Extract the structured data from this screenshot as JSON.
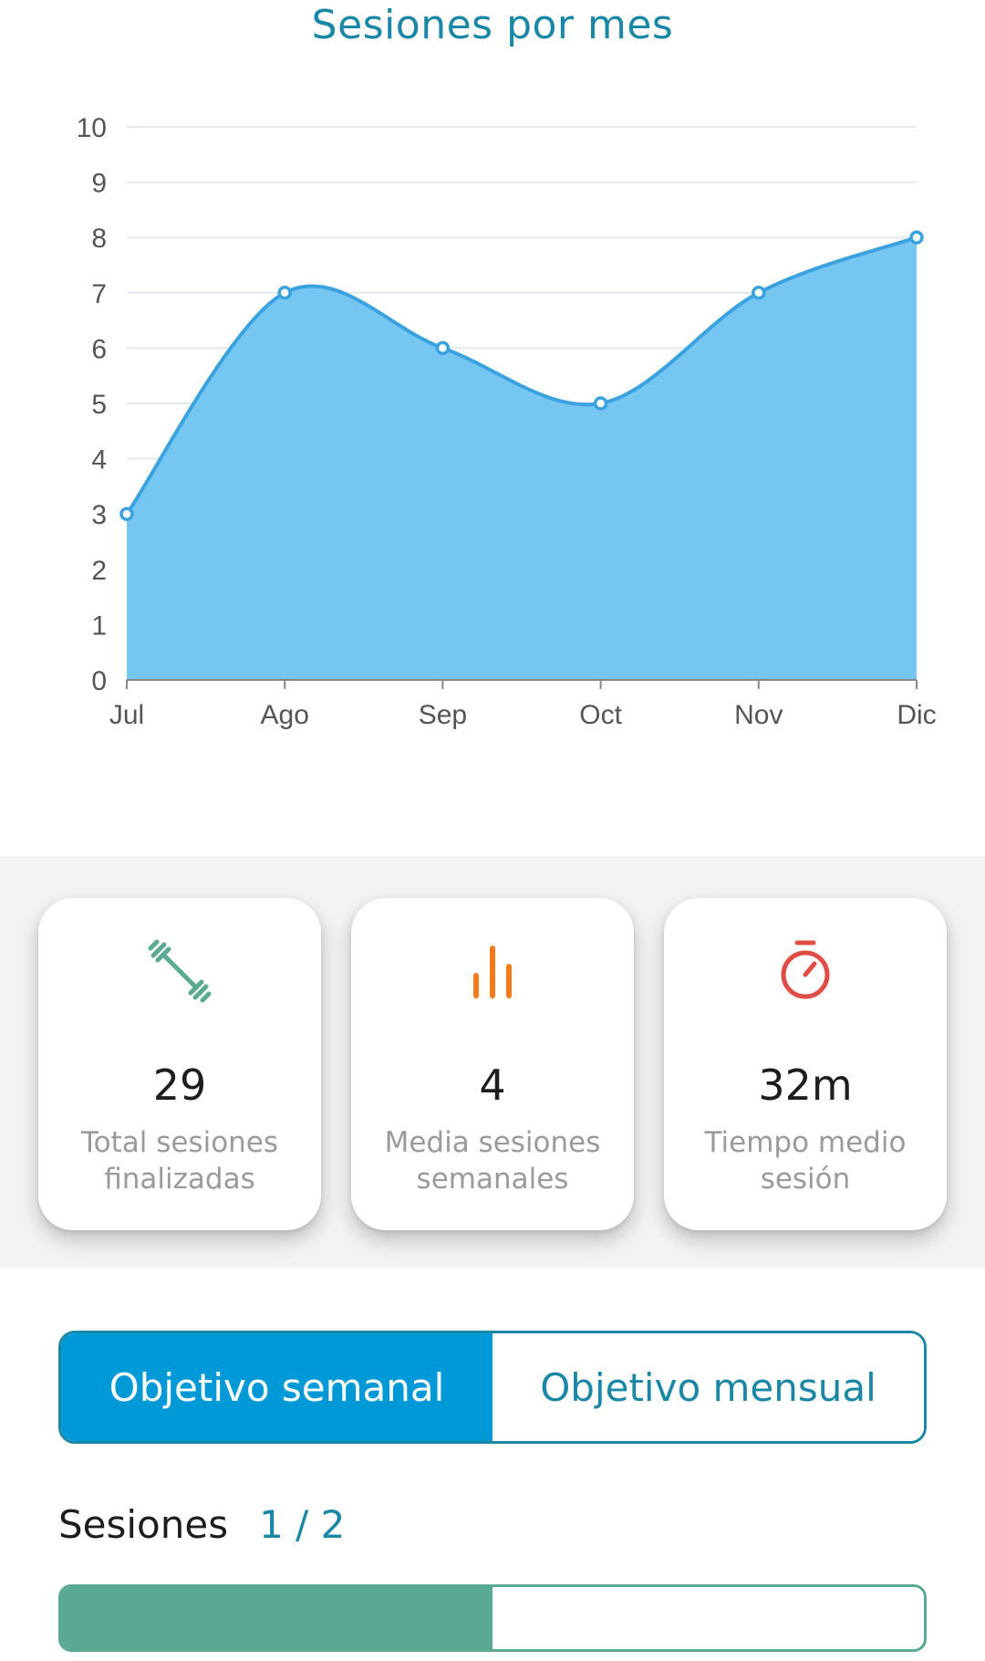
{
  "chart_data": {
    "type": "area",
    "title": "Sesiones por mes",
    "categories": [
      "Jul",
      "Ago",
      "Sep",
      "Oct",
      "Nov",
      "Dic"
    ],
    "values": [
      3,
      7,
      6,
      5,
      7,
      8
    ],
    "ylim": [
      0,
      10
    ],
    "yticks": [
      "0",
      "1",
      "2",
      "3",
      "4",
      "5",
      "6",
      "7",
      "8",
      "9",
      "10"
    ],
    "grid": true,
    "colors": {
      "fill": "#76c6f2",
      "line": "#3ba2e0",
      "grid": "#e1e8ef",
      "axis": "#888888"
    }
  },
  "stats": [
    {
      "icon": "dumbbell-icon",
      "value": "29",
      "label_line1": "Total sesiones",
      "label_line2": "finalizadas",
      "color": "#5aa993"
    },
    {
      "icon": "bar-chart-icon",
      "value": "4",
      "label_line1": "Media sesiones",
      "label_line2": "semanales",
      "color": "#f07c1e"
    },
    {
      "icon": "stopwatch-icon",
      "value": "32m",
      "label_line1": "Tiempo medio",
      "label_line2": "sesión",
      "color": "#e04d45"
    }
  ],
  "goal_tabs": {
    "weekly": "Objetivo semanal",
    "monthly": "Objetivo mensual",
    "selected": "weekly"
  },
  "sessions": {
    "label": "Sesiones",
    "count": "1 / 2",
    "progress": 0.5
  }
}
